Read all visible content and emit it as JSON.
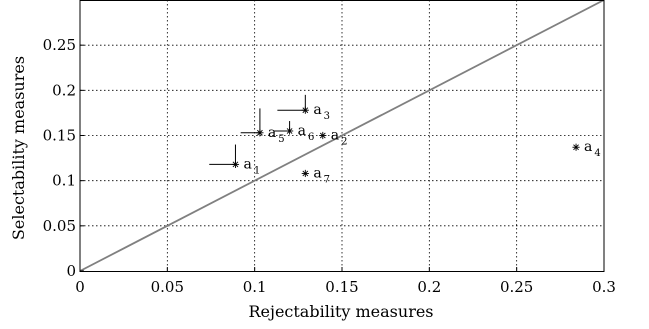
{
  "chart_data": {
    "type": "scatter",
    "xlabel": "Rejectability measures",
    "ylabel": "Selectability measures",
    "xlim": [
      0,
      0.3
    ],
    "ylim": [
      0,
      0.3
    ],
    "x_ticks": [
      "0",
      "0.05",
      "0.1",
      "0.15",
      "0.2",
      "0.25",
      "0.3"
    ],
    "y_ticks": [
      "0",
      "0.05",
      "0.1",
      "0.15",
      "0.2",
      "0.25"
    ],
    "grid": true,
    "marker": "*",
    "reference_line": {
      "x": [
        0,
        0.3
      ],
      "y": [
        0,
        0.3
      ],
      "color": "#808080"
    },
    "points": [
      {
        "label": "a",
        "sub": "1",
        "x": 0.089,
        "y": 0.118,
        "err_left": 0.015,
        "err_up": 0.022
      },
      {
        "label": "a",
        "sub": "2",
        "x": 0.139,
        "y": 0.15
      },
      {
        "label": "a",
        "sub": "3",
        "x": 0.129,
        "y": 0.178,
        "err_left": 0.016,
        "err_up": 0.017
      },
      {
        "label": "a",
        "sub": "4",
        "x": 0.284,
        "y": 0.137
      },
      {
        "label": "a",
        "sub": "5",
        "x": 0.103,
        "y": 0.153,
        "err_left": 0.011,
        "err_up": 0.027
      },
      {
        "label": "a",
        "sub": "6",
        "x": 0.12,
        "y": 0.155,
        "err_left": 0.009,
        "err_up": 0.011
      },
      {
        "label": "a",
        "sub": "7",
        "x": 0.129,
        "y": 0.108
      }
    ]
  }
}
